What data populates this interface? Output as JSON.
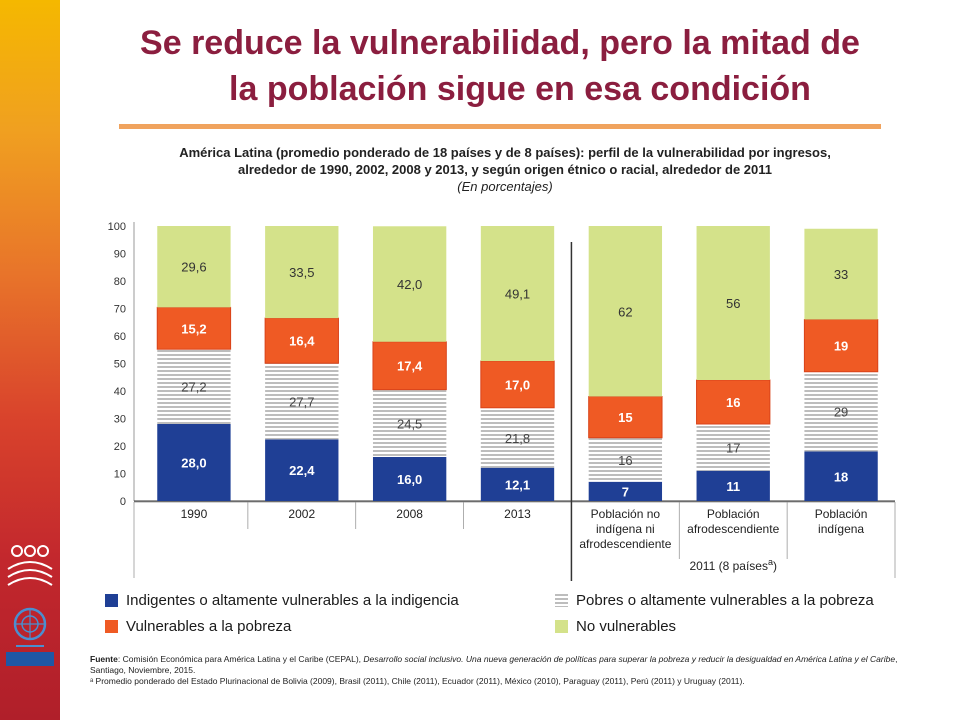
{
  "title_line1": "Se reduce la vulnerabilidad, pero la mitad de",
  "title_line2": "la población sigue en esa condición",
  "subtitle_line1": "América Latina (promedio ponderado de 18 países y de 8 países):  perfil de la vulnerabilidad por ingresos,",
  "subtitle_line2": "alrededor de 1990, 2002, 2008 y 2013, y según origen étnico o racial, alrededor de 2011",
  "units": "(En porcentajes)",
  "footer": {
    "source_label": "Fuente",
    "source_text": ": Comisión Económica para América Latina y el Caribe (CEPAL), ",
    "source_italic": "Desarrollo social inclusivo. Una nueva generación de políticas para superar la pobreza y reducir la desigualdad en América Latina y el Caribe",
    "source_end": ", Santiago, Noviembre, 2015.",
    "note": "ᵃ Promedio ponderado del Estado Plurinacional de Bolivia (2009), Brasil (2011), Chile (2011), Ecuador (2011), México (2010), Paraguay (2011), Perú (2011) y Uruguay (2011)."
  },
  "colors": {
    "indigentes": "#1f3f95",
    "pobres": "#d7d7d7",
    "vulnerables": "#ef5a24",
    "no_vulnerables": "#d4e28a",
    "title": "#8b1e3f",
    "sidebar_top": "#f5b800",
    "sidebar_bottom": "#b01f2a"
  },
  "chart_data": {
    "type": "bar",
    "stacked": true,
    "categories": [
      [
        "1990"
      ],
      [
        "2002"
      ],
      [
        "2008"
      ],
      [
        "2013"
      ],
      [
        "Población no",
        "indígena ni",
        "afrodescendiente"
      ],
      [
        "Población",
        "afrodescendiente"
      ],
      [
        "Población",
        "indígena"
      ]
    ],
    "group_label": "2011 (8 países",
    "group_label_sup": "a",
    "group_label_end": ")",
    "ylim": [
      0,
      100
    ],
    "yticks": [
      0,
      10,
      20,
      30,
      40,
      50,
      60,
      70,
      80,
      90,
      100
    ],
    "series": [
      {
        "name": "Indigentes o altamente vulnerables a la indigencia",
        "key": "indigentes",
        "values": [
          28.0,
          22.4,
          16.0,
          12.1,
          7,
          11,
          18
        ],
        "labels": [
          "28,0",
          "22,4",
          "16,0",
          "12,1",
          "7",
          "11",
          "18"
        ]
      },
      {
        "name": "Pobres o altamente vulnerables a la pobreza",
        "key": "pobres",
        "values": [
          27.2,
          27.7,
          24.5,
          21.8,
          16,
          17,
          29
        ],
        "labels": [
          "27,2",
          "27,7",
          "24,5",
          "21,8",
          "16",
          "17",
          "29"
        ]
      },
      {
        "name": "Vulnerables a la pobreza",
        "key": "vulnerables",
        "values": [
          15.2,
          16.4,
          17.4,
          17.0,
          15,
          16,
          19
        ],
        "labels": [
          "15,2",
          "16,4",
          "17,4",
          "17,0",
          "15",
          "16",
          "19"
        ]
      },
      {
        "name": "No vulnerables",
        "key": "no_vulnerables",
        "values": [
          29.6,
          33.5,
          42.0,
          49.1,
          62,
          56,
          33
        ],
        "labels": [
          "29,6",
          "33,5",
          "42,0",
          "49,1",
          "62",
          "56",
          "33"
        ]
      }
    ]
  }
}
